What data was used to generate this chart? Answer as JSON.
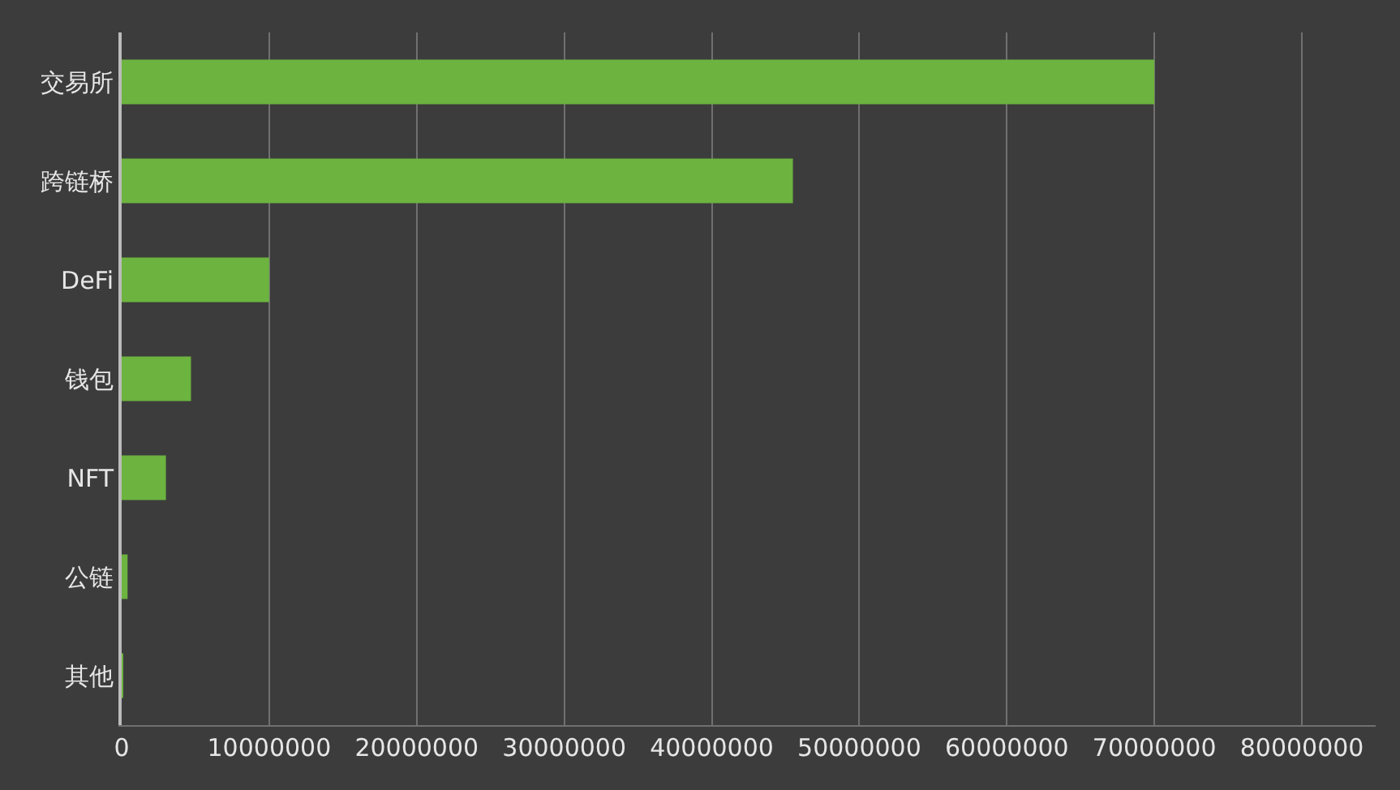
{
  "chart_data": {
    "type": "bar",
    "orientation": "horizontal",
    "categories": [
      "交易所",
      "跨链桥",
      "DeFi",
      "钱包",
      "NFT",
      "公链",
      "其他"
    ],
    "values": [
      70000000,
      45500000,
      10000000,
      4700000,
      3000000,
      400000,
      100000
    ],
    "color": "#6cb33f",
    "xlim": [
      0,
      85000000
    ],
    "xticks": [
      0,
      10000000,
      20000000,
      30000000,
      40000000,
      50000000,
      60000000,
      70000000,
      80000000
    ],
    "grid": "x",
    "legend": false
  }
}
